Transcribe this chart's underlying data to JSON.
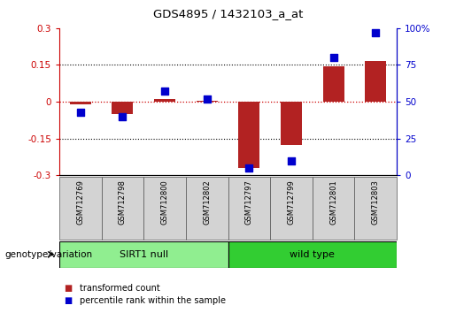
{
  "title": "GDS4895 / 1432103_a_at",
  "samples": [
    "GSM712769",
    "GSM712798",
    "GSM712800",
    "GSM712802",
    "GSM712797",
    "GSM712799",
    "GSM712801",
    "GSM712803"
  ],
  "transformed_count": [
    -0.01,
    -0.05,
    0.01,
    0.005,
    -0.27,
    -0.175,
    0.145,
    0.165
  ],
  "percentile_rank_raw": [
    43,
    40,
    57,
    52,
    5,
    10,
    80,
    97
  ],
  "ylim_left": [
    -0.3,
    0.3
  ],
  "ylim_right": [
    0,
    100
  ],
  "yticks_left": [
    -0.3,
    -0.15,
    0,
    0.15,
    0.3
  ],
  "yticks_right": [
    0,
    25,
    50,
    75,
    100
  ],
  "yticklabels_left": [
    "-0.3",
    "-0.15",
    "0",
    "0.15",
    "0.3"
  ],
  "yticklabels_right": [
    "0",
    "25",
    "50",
    "75",
    "100%"
  ],
  "groups": [
    {
      "label": "SIRT1 null",
      "start": 0,
      "end": 4,
      "color": "#90ee90"
    },
    {
      "label": "wild type",
      "start": 4,
      "end": 8,
      "color": "#32cd32"
    }
  ],
  "group_label_text": "genotype/variation",
  "legend_items": [
    {
      "color": "#b22222",
      "label": "transformed count"
    },
    {
      "color": "#0000cd",
      "label": "percentile rank within the sample"
    }
  ],
  "bar_color": "#b22222",
  "dot_color": "#0000cd",
  "zero_line_color": "#cc0000",
  "bg_color": "#ffffff",
  "tick_label_area_color": "#d3d3d3",
  "bar_width": 0.5,
  "dot_size": 28
}
